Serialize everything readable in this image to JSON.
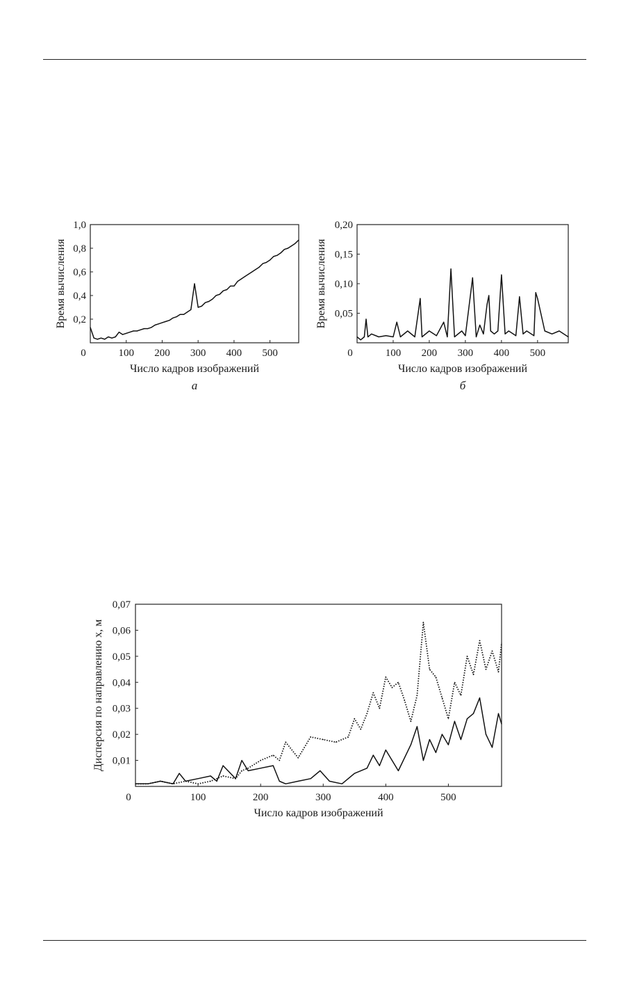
{
  "chart_data": [
    {
      "id": "a",
      "type": "line",
      "caption": "а",
      "xlabel": "Число кадров изображений",
      "ylabel": "Время вычисления",
      "xlim": [
        0,
        580
      ],
      "ylim": [
        0,
        1.0
      ],
      "xticks": [
        0,
        100,
        200,
        300,
        400,
        500
      ],
      "yticks": [
        0.2,
        0.4,
        0.6,
        0.8,
        1.0
      ],
      "xtick_labels": [
        "0",
        "100",
        "200",
        "300",
        "400",
        "500"
      ],
      "ytick_labels": [
        "0,2",
        "0,4",
        "0,6",
        "0,8",
        "1,0"
      ],
      "series": [
        {
          "style": "solid",
          "x": [
            0,
            10,
            20,
            30,
            40,
            50,
            60,
            70,
            80,
            90,
            100,
            110,
            120,
            130,
            140,
            150,
            160,
            170,
            180,
            190,
            200,
            210,
            220,
            230,
            240,
            250,
            260,
            270,
            280,
            290,
            300,
            310,
            320,
            330,
            340,
            350,
            360,
            370,
            380,
            390,
            400,
            410,
            420,
            430,
            440,
            450,
            460,
            470,
            480,
            490,
            500,
            510,
            520,
            530,
            540,
            550,
            560,
            570,
            580
          ],
          "y": [
            0.13,
            0.04,
            0.03,
            0.04,
            0.03,
            0.05,
            0.04,
            0.05,
            0.09,
            0.07,
            0.08,
            0.09,
            0.1,
            0.1,
            0.11,
            0.12,
            0.12,
            0.13,
            0.15,
            0.16,
            0.17,
            0.18,
            0.19,
            0.21,
            0.22,
            0.24,
            0.24,
            0.26,
            0.28,
            0.5,
            0.3,
            0.31,
            0.34,
            0.35,
            0.37,
            0.4,
            0.41,
            0.44,
            0.45,
            0.48,
            0.48,
            0.52,
            0.54,
            0.56,
            0.58,
            0.6,
            0.62,
            0.64,
            0.67,
            0.68,
            0.7,
            0.73,
            0.74,
            0.76,
            0.79,
            0.8,
            0.82,
            0.84,
            0.87
          ]
        }
      ]
    },
    {
      "id": "b",
      "type": "line",
      "caption": "б",
      "xlabel": "Число кадров изображений",
      "ylabel": "Время вычисления",
      "xlim": [
        0,
        585
      ],
      "ylim": [
        0,
        0.2
      ],
      "xticks": [
        0,
        100,
        200,
        300,
        400,
        500
      ],
      "yticks": [
        0.05,
        0.1,
        0.15,
        0.2
      ],
      "xtick_labels": [
        "0",
        "100",
        "200",
        "300",
        "400",
        "500"
      ],
      "ytick_labels": [
        "0,05",
        "0,10",
        "0,15",
        "0,20"
      ],
      "series": [
        {
          "style": "solid",
          "x": [
            0,
            10,
            20,
            25,
            30,
            40,
            60,
            80,
            100,
            110,
            120,
            140,
            160,
            175,
            180,
            200,
            220,
            240,
            250,
            260,
            270,
            290,
            300,
            320,
            330,
            340,
            350,
            360,
            365,
            370,
            380,
            390,
            400,
            410,
            420,
            440,
            450,
            460,
            470,
            490,
            495,
            500,
            520,
            540,
            560,
            585
          ],
          "y": [
            0.01,
            0.005,
            0.01,
            0.04,
            0.01,
            0.015,
            0.01,
            0.012,
            0.01,
            0.035,
            0.01,
            0.02,
            0.01,
            0.075,
            0.01,
            0.02,
            0.012,
            0.035,
            0.01,
            0.125,
            0.01,
            0.02,
            0.012,
            0.11,
            0.01,
            0.03,
            0.015,
            0.065,
            0.08,
            0.02,
            0.015,
            0.02,
            0.115,
            0.015,
            0.02,
            0.012,
            0.078,
            0.015,
            0.02,
            0.012,
            0.085,
            0.075,
            0.02,
            0.015,
            0.02,
            0.01
          ]
        }
      ]
    },
    {
      "id": "c",
      "type": "line",
      "caption": "",
      "xlabel": "Число кадров изображений",
      "ylabel": "Дисперсия по направлению x, м",
      "xlim": [
        0,
        585
      ],
      "ylim": [
        0,
        0.07
      ],
      "xticks": [
        0,
        100,
        200,
        300,
        400,
        500
      ],
      "yticks": [
        0.01,
        0.02,
        0.03,
        0.04,
        0.05,
        0.06,
        0.07
      ],
      "xtick_labels": [
        "0",
        "100",
        "200",
        "300",
        "400",
        "500"
      ],
      "ytick_labels": [
        "0,01",
        "0,02",
        "0,03",
        "0,04",
        "0,05",
        "0,06",
        "0,07"
      ],
      "series": [
        {
          "style": "solid",
          "x": [
            0,
            20,
            40,
            60,
            70,
            80,
            100,
            120,
            130,
            140,
            160,
            170,
            180,
            200,
            220,
            230,
            240,
            260,
            280,
            295,
            310,
            330,
            350,
            370,
            380,
            390,
            400,
            410,
            420,
            440,
            450,
            460,
            470,
            480,
            490,
            500,
            510,
            520,
            530,
            540,
            550,
            560,
            570,
            580,
            585
          ],
          "y": [
            0.001,
            0.001,
            0.002,
            0.001,
            0.005,
            0.002,
            0.003,
            0.004,
            0.002,
            0.008,
            0.003,
            0.01,
            0.006,
            0.007,
            0.008,
            0.002,
            0.001,
            0.002,
            0.003,
            0.006,
            0.002,
            0.001,
            0.005,
            0.007,
            0.012,
            0.008,
            0.014,
            0.01,
            0.006,
            0.016,
            0.023,
            0.01,
            0.018,
            0.013,
            0.02,
            0.016,
            0.025,
            0.018,
            0.026,
            0.028,
            0.034,
            0.02,
            0.015,
            0.028,
            0.024
          ]
        },
        {
          "style": "dotted",
          "x": [
            0,
            20,
            40,
            60,
            80,
            100,
            120,
            140,
            160,
            170,
            180,
            200,
            220,
            230,
            240,
            260,
            280,
            300,
            320,
            340,
            350,
            360,
            370,
            380,
            390,
            400,
            410,
            420,
            430,
            440,
            450,
            460,
            470,
            480,
            490,
            500,
            510,
            520,
            530,
            540,
            550,
            560,
            570,
            580,
            585
          ],
          "y": [
            0.001,
            0.001,
            0.002,
            0.001,
            0.002,
            0.001,
            0.002,
            0.004,
            0.003,
            0.006,
            0.007,
            0.01,
            0.012,
            0.01,
            0.017,
            0.011,
            0.019,
            0.018,
            0.017,
            0.019,
            0.026,
            0.022,
            0.028,
            0.036,
            0.03,
            0.042,
            0.038,
            0.04,
            0.033,
            0.025,
            0.035,
            0.063,
            0.045,
            0.042,
            0.034,
            0.026,
            0.04,
            0.035,
            0.05,
            0.043,
            0.056,
            0.045,
            0.052,
            0.044,
            0.055
          ]
        }
      ]
    }
  ]
}
